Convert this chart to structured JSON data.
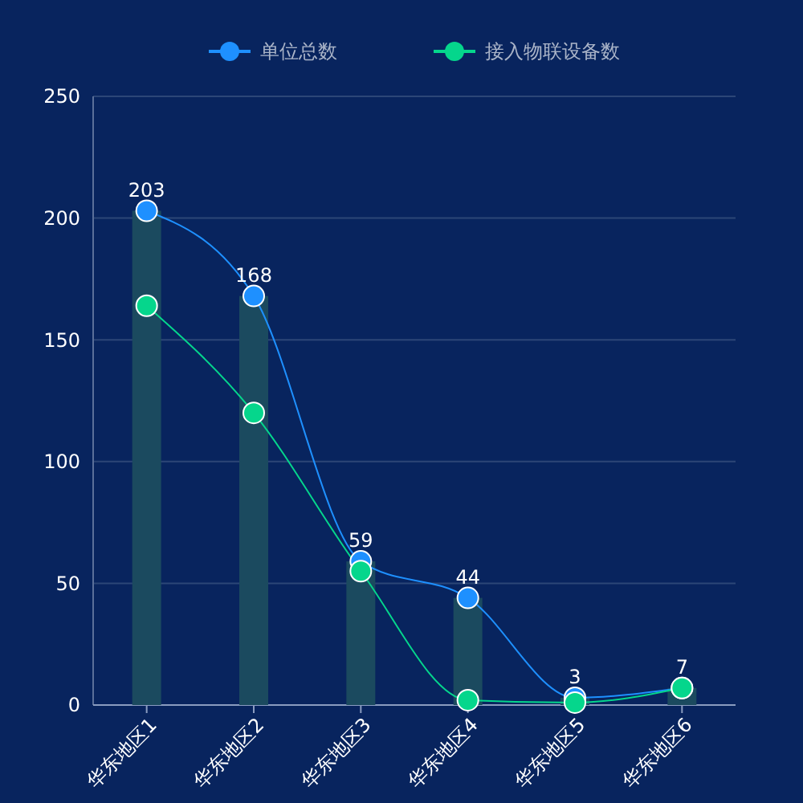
{
  "chart_data": {
    "type": "bar",
    "categories": [
      "华东地区1",
      "华东地区2",
      "华东地区3",
      "华东地区4",
      "华东地区5",
      "华东地区6"
    ],
    "series": [
      {
        "color": "#1b4a5f",
        "values": [
          203,
          168,
          59,
          44,
          3,
          7
        ],
        "value_labels": [
          "203",
          "168",
          "59",
          "44",
          "3",
          "7"
        ]
      },
      {
        "type": "line",
        "name": "单位总数",
        "color": "#1e90ff",
        "values": [
          203,
          168,
          59,
          44,
          3,
          7
        ]
      },
      {
        "type": "line",
        "name": "接入物联设备数",
        "color": "#05d68c",
        "values": [
          164,
          120,
          55,
          2,
          1,
          7
        ]
      }
    ],
    "ylim": [
      0,
      250
    ],
    "yticks": [
      0,
      50,
      100,
      150,
      200,
      250
    ],
    "grid": "y",
    "legend": "top",
    "marker": "circle"
  }
}
